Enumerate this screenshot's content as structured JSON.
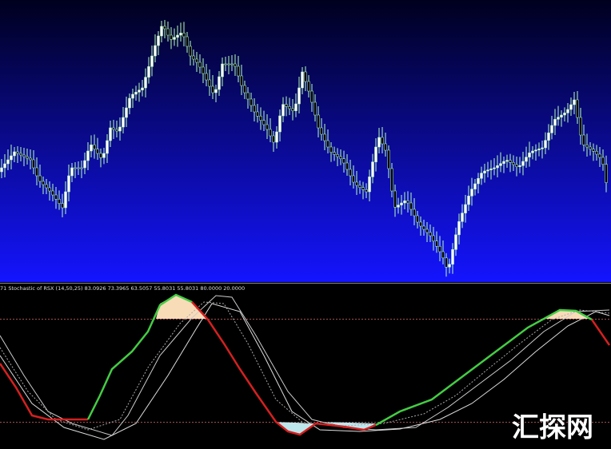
{
  "indicator_panel": {
    "label": "71 Stochastic of RSX (14,50,25) 83.0926 73.3965 63.5057 55.8031 55.8031 80.0000 20.0000"
  },
  "watermark": {
    "text": "汇探网"
  }
}
